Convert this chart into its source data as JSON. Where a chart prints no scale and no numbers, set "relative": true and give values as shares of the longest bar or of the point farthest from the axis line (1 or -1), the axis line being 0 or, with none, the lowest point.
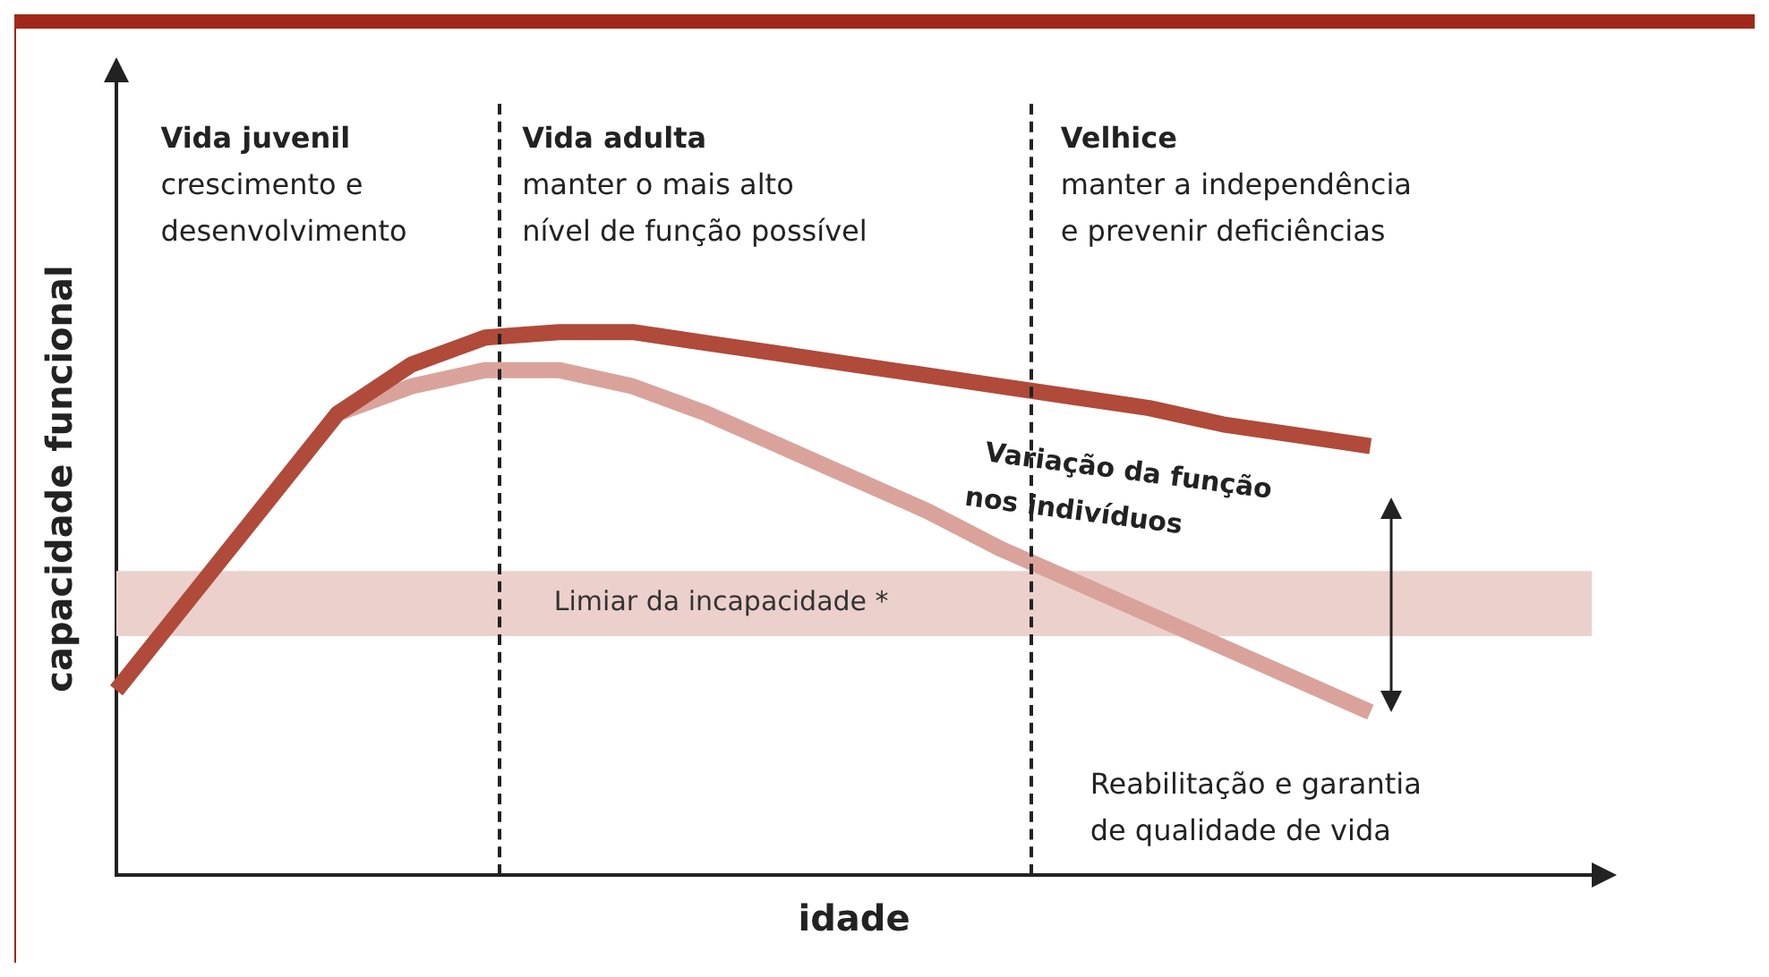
{
  "chart_data": {
    "type": "line",
    "relative": true,
    "xlabel": "idade",
    "ylabel": "capacidade funcional",
    "legend": false,
    "grid": false,
    "marker": "none",
    "line_style": "solid",
    "categories": [
      null,
      null,
      null,
      null,
      null,
      null,
      null,
      null,
      null,
      null,
      null,
      null,
      null,
      null,
      null,
      null,
      null,
      null,
      null,
      null,
      null
    ],
    "series": [
      {
        "color": "#b04a3a",
        "values": [
          0.34,
          0.51,
          0.68,
          0.85,
          0.94,
          0.99,
          1,
          1,
          0.98,
          0.96,
          0.94,
          0.92,
          0.9,
          0.88,
          0.86,
          0.83,
          0.81,
          0.79,
          null,
          null,
          null
        ]
      },
      {
        "color": "#d9a39b",
        "values": [
          null,
          null,
          null,
          0.85,
          0.9,
          0.93,
          0.93,
          0.9,
          0.85,
          0.79,
          0.73,
          0.67,
          0.6,
          0.54,
          0.48,
          0.42,
          0.36,
          0.3,
          null,
          null,
          null
        ]
      }
    ],
    "bands": [
      {
        "axis": "y",
        "from": 0.44,
        "to": 0.56,
        "label": "Limiar da incapacidade *",
        "color": "#ecd0cc"
      }
    ],
    "annotations": [
      "Vida juvenil\ncrescimento e\ndesenvolvimento",
      "Vida adulta\nmanter o mais alto\nnível de função possível",
      "Velhice\nmanter a independência\ne prevenir deficiências",
      "Variação da função\nnos indivíduos",
      "Reabilitação e garantia\nde qualidade de vida"
    ]
  }
}
